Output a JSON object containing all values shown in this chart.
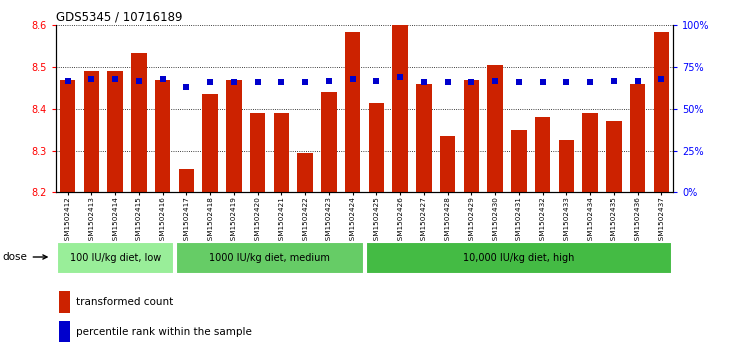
{
  "title": "GDS5345 / 10716189",
  "samples": [
    "GSM1502412",
    "GSM1502413",
    "GSM1502414",
    "GSM1502415",
    "GSM1502416",
    "GSM1502417",
    "GSM1502418",
    "GSM1502419",
    "GSM1502420",
    "GSM1502421",
    "GSM1502422",
    "GSM1502423",
    "GSM1502424",
    "GSM1502425",
    "GSM1502426",
    "GSM1502427",
    "GSM1502428",
    "GSM1502429",
    "GSM1502430",
    "GSM1502431",
    "GSM1502432",
    "GSM1502433",
    "GSM1502434",
    "GSM1502435",
    "GSM1502436",
    "GSM1502437"
  ],
  "bar_values": [
    8.47,
    8.49,
    8.49,
    8.535,
    8.47,
    8.255,
    8.435,
    8.47,
    8.39,
    8.39,
    8.295,
    8.44,
    8.585,
    8.415,
    8.605,
    8.46,
    8.335,
    8.47,
    8.505,
    8.35,
    8.38,
    8.325,
    8.39,
    8.37,
    8.46,
    8.585
  ],
  "percentile_values": [
    67,
    68,
    68,
    67,
    68,
    63,
    66,
    66,
    66,
    66,
    66,
    67,
    68,
    67,
    69,
    66,
    66,
    66,
    67,
    66,
    66,
    66,
    66,
    67,
    67,
    68
  ],
  "bar_color": "#cc2200",
  "percentile_color": "#0000cc",
  "ylim_left": [
    8.2,
    8.6
  ],
  "ylim_right": [
    0,
    100
  ],
  "yticks_left": [
    8.2,
    8.3,
    8.4,
    8.5,
    8.6
  ],
  "yticks_right": [
    0,
    25,
    50,
    75,
    100
  ],
  "ytick_labels_right": [
    "0%",
    "25%",
    "50%",
    "75%",
    "100%"
  ],
  "grid_color": "black",
  "grid_style": "dotted",
  "groups": [
    {
      "label": "100 IU/kg diet, low",
      "start": 0,
      "end": 5,
      "color": "#99ee99"
    },
    {
      "label": "1000 IU/kg diet, medium",
      "start": 5,
      "end": 13,
      "color": "#66cc66"
    },
    {
      "label": "10,000 IU/kg diet, high",
      "start": 13,
      "end": 26,
      "color": "#44bb44"
    }
  ],
  "legend_items": [
    {
      "label": "transformed count",
      "color": "#cc2200"
    },
    {
      "label": "percentile rank within the sample",
      "color": "#0000cc"
    }
  ],
  "dose_label": "dose",
  "plot_bg_color": "#ffffff"
}
